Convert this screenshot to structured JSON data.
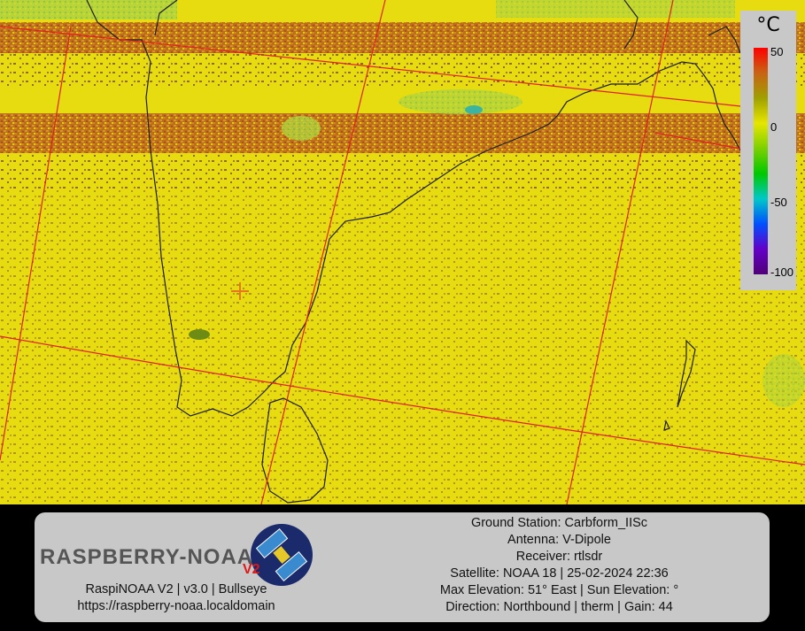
{
  "legend": {
    "unit": "°C",
    "ticks": [
      "50",
      "0",
      "-50",
      "-100"
    ],
    "colors": [
      "#ff0000",
      "#c86414",
      "#a0a000",
      "#e6e600",
      "#7cd000",
      "#00c800",
      "#00c8c8",
      "#0050ff",
      "#6400c8",
      "#500078"
    ]
  },
  "map": {
    "background_color": "#e6dc10",
    "band_color": "#b4501e",
    "grid_color": "#e02020",
    "coast_color": "#202020"
  },
  "footer": {
    "logo_text": "RASPBERRY-NOAA",
    "logo_badge": "V2",
    "version_line": "RaspiNOAA V2 | v3.0 | Bullseye",
    "url": "https://raspberry-noaa.localdomain",
    "ground_station": "Ground Station: Carbform_IISc",
    "antenna": "Antenna: V-Dipole",
    "receiver": "Receiver: rtlsdr",
    "satellite": "Satellite: NOAA 18 | 25-02-2024 22:36",
    "elevation": "Max Elevation: 51° East | Sun Elevation: °",
    "direction": "Direction: Northbound | therm | Gain: 44"
  }
}
